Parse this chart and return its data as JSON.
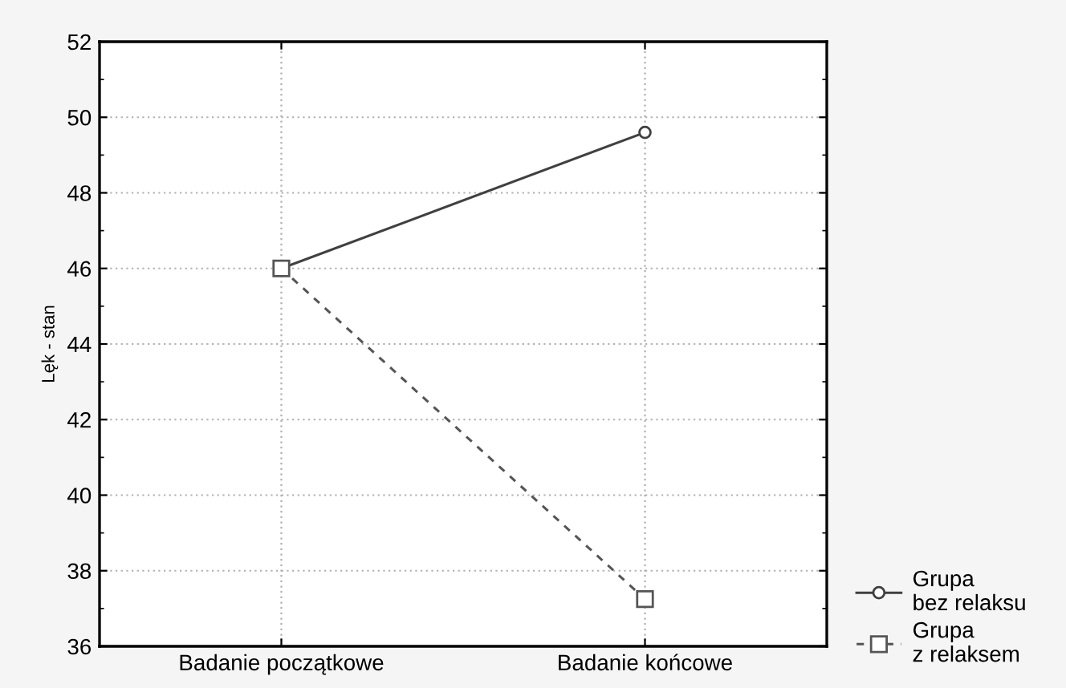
{
  "chart_data": {
    "type": "line",
    "ylabel": "Lęk - stan",
    "categories": [
      "Badanie początkowe",
      "Badanie końcowe"
    ],
    "series": [
      {
        "name": "Grupa\nbez relaksu",
        "color": "#404040",
        "values": [
          46.0,
          49.6
        ],
        "marker": "circle",
        "line_style": "solid"
      },
      {
        "name": "Grupa\nz relaksem",
        "color": "#555555",
        "values": [
          46.0,
          37.25
        ],
        "marker": "square",
        "line_style": "dashed"
      }
    ],
    "ylim": [
      36,
      52
    ],
    "yticks": [
      36,
      38,
      40,
      42,
      44,
      46,
      48,
      50,
      52
    ],
    "grid": true,
    "legend": "bottom right"
  }
}
